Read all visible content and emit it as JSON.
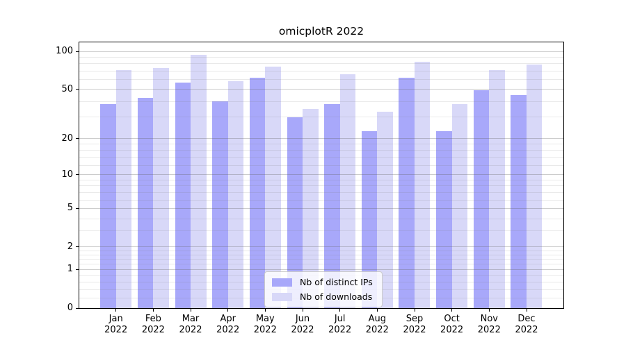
{
  "title": "omicplotR 2022",
  "chart_data": {
    "type": "bar",
    "title": "omicplotR 2022",
    "y_scale": "log1p",
    "categories": [
      "Jan",
      "Feb",
      "Mar",
      "Apr",
      "May",
      "Jun",
      "Jul",
      "Aug",
      "Sep",
      "Oct",
      "Nov",
      "Dec"
    ],
    "category_year": "2022",
    "series": [
      {
        "name": "Nb of distinct IPs",
        "color": "#a8a8fa",
        "values": [
          38,
          43,
          57,
          40,
          62,
          30,
          38,
          23,
          62,
          23,
          49,
          45
        ]
      },
      {
        "name": "Nb of downloads",
        "color": "#d8d8f8",
        "values": [
          71,
          74,
          94,
          58,
          76,
          35,
          66,
          33,
          83,
          38,
          71,
          79
        ]
      }
    ],
    "yticks": [
      0,
      1,
      2,
      5,
      10,
      20,
      50,
      100
    ],
    "yticks_minor": [
      0.2,
      0.4,
      0.6,
      0.8,
      1.2,
      1.4,
      1.6,
      1.8,
      3,
      4,
      6,
      7,
      8,
      9,
      12,
      14,
      16,
      18,
      30,
      40,
      60,
      70,
      80,
      90
    ],
    "ylim": [
      0,
      110
    ],
    "grid": true,
    "legend_position": "bottom-center"
  },
  "colors": {
    "bar_distinct_ips": "#a8a8fa",
    "bar_downloads": "#d8d8f8",
    "grid_major": "#cccccc",
    "grid_minor": "#eaeaea",
    "axis": "#000000",
    "background": "#ffffff"
  }
}
